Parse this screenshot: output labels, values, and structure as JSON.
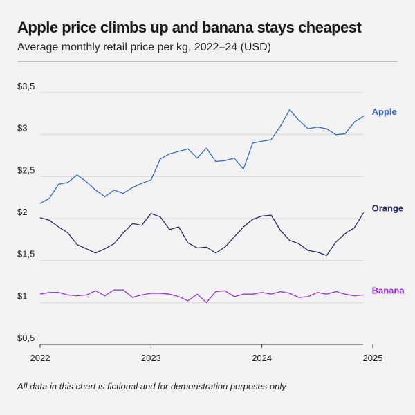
{
  "chart_data": {
    "type": "line",
    "title": "Apple price climbs up and banana stays cheapest",
    "subtitle": "Average monthly retail price per kg, 2022–24 (USD)",
    "note": "All data in this chart is fictional and for demonstration purposes only",
    "xlabel": "",
    "ylabel": "",
    "x_start": 2022,
    "x_step_months": 1,
    "xlim": [
      2022,
      2025
    ],
    "ylim": [
      0.5,
      3.5
    ],
    "x_ticks": [
      {
        "v": 2022,
        "label": "2022"
      },
      {
        "v": 2023,
        "label": "2023"
      },
      {
        "v": 2024,
        "label": "2024"
      },
      {
        "v": 2025,
        "label": "2025"
      }
    ],
    "y_ticks": [
      {
        "v": 0.5,
        "label": "$0,5"
      },
      {
        "v": 1,
        "label": "$1"
      },
      {
        "v": 1.5,
        "label": "$1,5"
      },
      {
        "v": 2,
        "label": "$2"
      },
      {
        "v": 2.5,
        "label": "$2,5"
      },
      {
        "v": 3,
        "label": "$3"
      },
      {
        "v": 3.5,
        "label": "$3,5"
      }
    ],
    "grid": true,
    "series": [
      {
        "name": "Apple",
        "color": "#3568c8",
        "values": [
          2.18,
          2.24,
          2.41,
          2.43,
          2.52,
          2.44,
          2.34,
          2.26,
          2.34,
          2.3,
          2.37,
          2.42,
          2.46,
          2.71,
          2.77,
          2.8,
          2.83,
          2.72,
          2.84,
          2.68,
          2.69,
          2.72,
          2.59,
          2.9,
          2.92,
          2.94,
          3.1,
          3.3,
          3.17,
          3.07,
          3.09,
          3.07,
          3.0,
          3.01,
          3.15,
          3.22
        ]
      },
      {
        "name": "Orange",
        "color": "#262b63",
        "values": [
          2.01,
          1.98,
          1.9,
          1.83,
          1.69,
          1.64,
          1.59,
          1.64,
          1.7,
          1.83,
          1.94,
          1.92,
          2.06,
          2.02,
          1.87,
          1.9,
          1.71,
          1.65,
          1.66,
          1.59,
          1.66,
          1.78,
          1.9,
          1.99,
          2.03,
          2.04,
          1.86,
          1.74,
          1.7,
          1.62,
          1.6,
          1.56,
          1.72,
          1.82,
          1.89,
          2.07
        ]
      },
      {
        "name": "Banana",
        "color": "#9b2fd6",
        "values": [
          1.1,
          1.12,
          1.12,
          1.09,
          1.08,
          1.09,
          1.14,
          1.08,
          1.15,
          1.15,
          1.06,
          1.09,
          1.11,
          1.11,
          1.1,
          1.07,
          1.02,
          1.1,
          1.0,
          1.13,
          1.14,
          1.07,
          1.1,
          1.1,
          1.12,
          1.1,
          1.13,
          1.11,
          1.06,
          1.07,
          1.12,
          1.1,
          1.13,
          1.1,
          1.08,
          1.09
        ]
      }
    ]
  }
}
